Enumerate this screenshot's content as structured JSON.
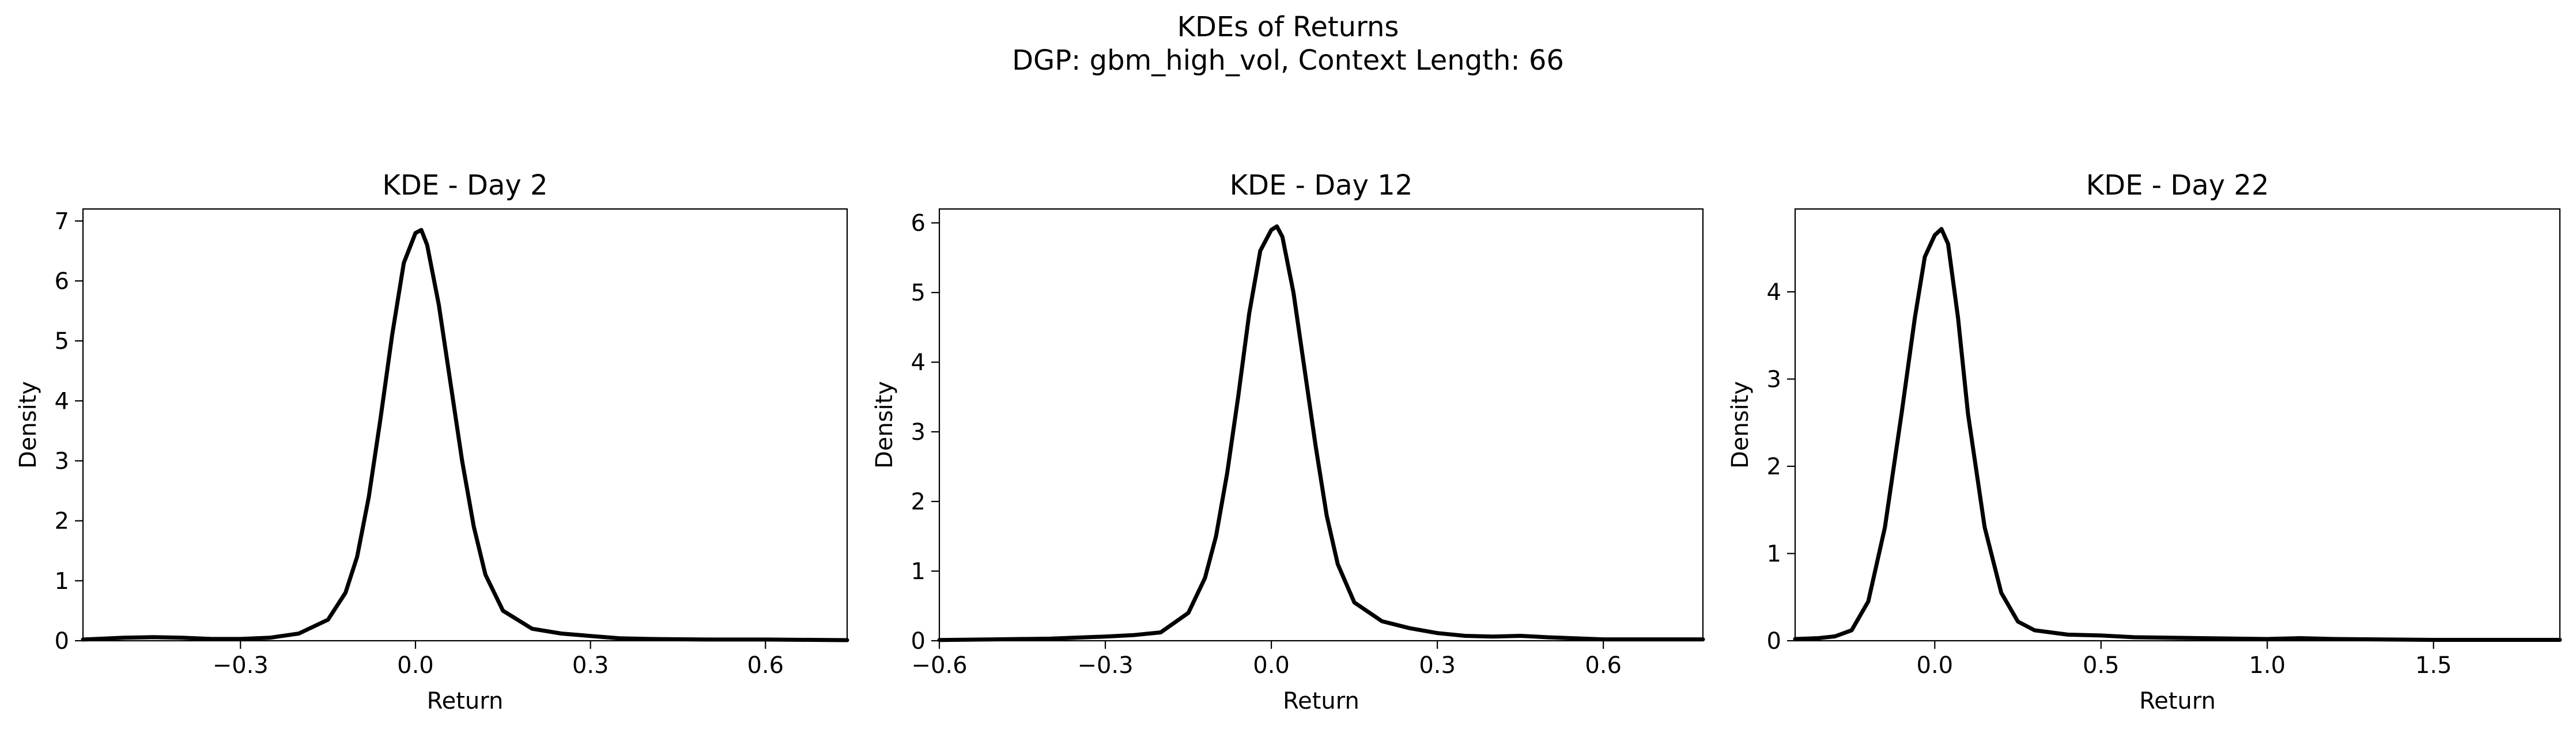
{
  "figure": {
    "title_line1": "KDEs of Returns",
    "title_line2": "DGP: gbm_high_vol, Context Length: 66"
  },
  "colors": {
    "line": "#000000",
    "axes": "#000000",
    "background": "#ffffff"
  },
  "chart_data": [
    {
      "type": "line",
      "title": "KDE - Day 2",
      "xlabel": "Return",
      "ylabel": "Density",
      "xlim": [
        -0.57,
        0.74
      ],
      "ylim": [
        0,
        7.2
      ],
      "xticks": [
        -0.3,
        0.0,
        0.3,
        0.6
      ],
      "xtick_labels": [
        "−0.3",
        "0.0",
        "0.3",
        "0.6"
      ],
      "yticks": [
        0,
        1,
        2,
        3,
        4,
        5,
        6,
        7
      ],
      "ytick_labels": [
        "0",
        "1",
        "2",
        "3",
        "4",
        "5",
        "6",
        "7"
      ],
      "grid": false,
      "series": [
        {
          "x": [
            -0.57,
            -0.5,
            -0.45,
            -0.4,
            -0.35,
            -0.3,
            -0.25,
            -0.2,
            -0.15,
            -0.12,
            -0.1,
            -0.08,
            -0.06,
            -0.04,
            -0.02,
            0.0,
            0.01,
            0.02,
            0.04,
            0.06,
            0.08,
            0.1,
            0.12,
            0.15,
            0.2,
            0.25,
            0.3,
            0.35,
            0.4,
            0.5,
            0.6,
            0.74
          ],
          "y": [
            0.02,
            0.05,
            0.06,
            0.05,
            0.03,
            0.03,
            0.05,
            0.12,
            0.35,
            0.8,
            1.4,
            2.4,
            3.7,
            5.1,
            6.3,
            6.8,
            6.85,
            6.6,
            5.6,
            4.3,
            3.0,
            1.9,
            1.1,
            0.5,
            0.2,
            0.12,
            0.08,
            0.04,
            0.03,
            0.02,
            0.02,
            0.01
          ]
        }
      ]
    },
    {
      "type": "line",
      "title": "KDE - Day 12",
      "xlabel": "Return",
      "ylabel": "Density",
      "xlim": [
        -0.6,
        0.78
      ],
      "ylim": [
        0,
        6.2
      ],
      "xticks": [
        -0.6,
        -0.3,
        0.0,
        0.3,
        0.6
      ],
      "xtick_labels": [
        "−0.6",
        "−0.3",
        "0.0",
        "0.3",
        "0.6"
      ],
      "yticks": [
        0,
        1,
        2,
        3,
        4,
        5,
        6
      ],
      "ytick_labels": [
        "0",
        "1",
        "2",
        "3",
        "4",
        "5",
        "6"
      ],
      "grid": false,
      "series": [
        {
          "x": [
            -0.6,
            -0.5,
            -0.4,
            -0.3,
            -0.25,
            -0.2,
            -0.15,
            -0.12,
            -0.1,
            -0.08,
            -0.06,
            -0.04,
            -0.02,
            0.0,
            0.01,
            0.02,
            0.04,
            0.06,
            0.08,
            0.1,
            0.12,
            0.15,
            0.2,
            0.25,
            0.3,
            0.35,
            0.4,
            0.45,
            0.5,
            0.6,
            0.7,
            0.78
          ],
          "y": [
            0.01,
            0.02,
            0.03,
            0.06,
            0.08,
            0.12,
            0.4,
            0.9,
            1.5,
            2.4,
            3.5,
            4.7,
            5.6,
            5.9,
            5.95,
            5.8,
            5.0,
            3.9,
            2.8,
            1.8,
            1.1,
            0.55,
            0.28,
            0.18,
            0.11,
            0.07,
            0.06,
            0.07,
            0.05,
            0.02,
            0.02,
            0.02
          ]
        }
      ]
    },
    {
      "type": "line",
      "title": "KDE - Day 22",
      "xlabel": "Return",
      "ylabel": "Density",
      "xlim": [
        -0.42,
        1.88
      ],
      "ylim": [
        0,
        4.95
      ],
      "xticks": [
        0.0,
        0.5,
        1.0,
        1.5
      ],
      "xtick_labels": [
        "0.0",
        "0.5",
        "1.0",
        "1.5"
      ],
      "yticks": [
        0,
        1,
        2,
        3,
        4
      ],
      "ytick_labels": [
        "0",
        "1",
        "2",
        "3",
        "4"
      ],
      "grid": false,
      "series": [
        {
          "x": [
            -0.42,
            -0.35,
            -0.3,
            -0.25,
            -0.2,
            -0.15,
            -0.1,
            -0.06,
            -0.03,
            0.0,
            0.02,
            0.04,
            0.07,
            0.1,
            0.15,
            0.2,
            0.25,
            0.3,
            0.4,
            0.5,
            0.6,
            0.8,
            1.0,
            1.1,
            1.2,
            1.5,
            1.7,
            1.88
          ],
          "y": [
            0.02,
            0.03,
            0.05,
            0.12,
            0.45,
            1.3,
            2.6,
            3.7,
            4.4,
            4.65,
            4.72,
            4.55,
            3.7,
            2.6,
            1.3,
            0.55,
            0.22,
            0.12,
            0.07,
            0.06,
            0.04,
            0.03,
            0.02,
            0.03,
            0.02,
            0.01,
            0.01,
            0.01
          ]
        }
      ]
    }
  ]
}
